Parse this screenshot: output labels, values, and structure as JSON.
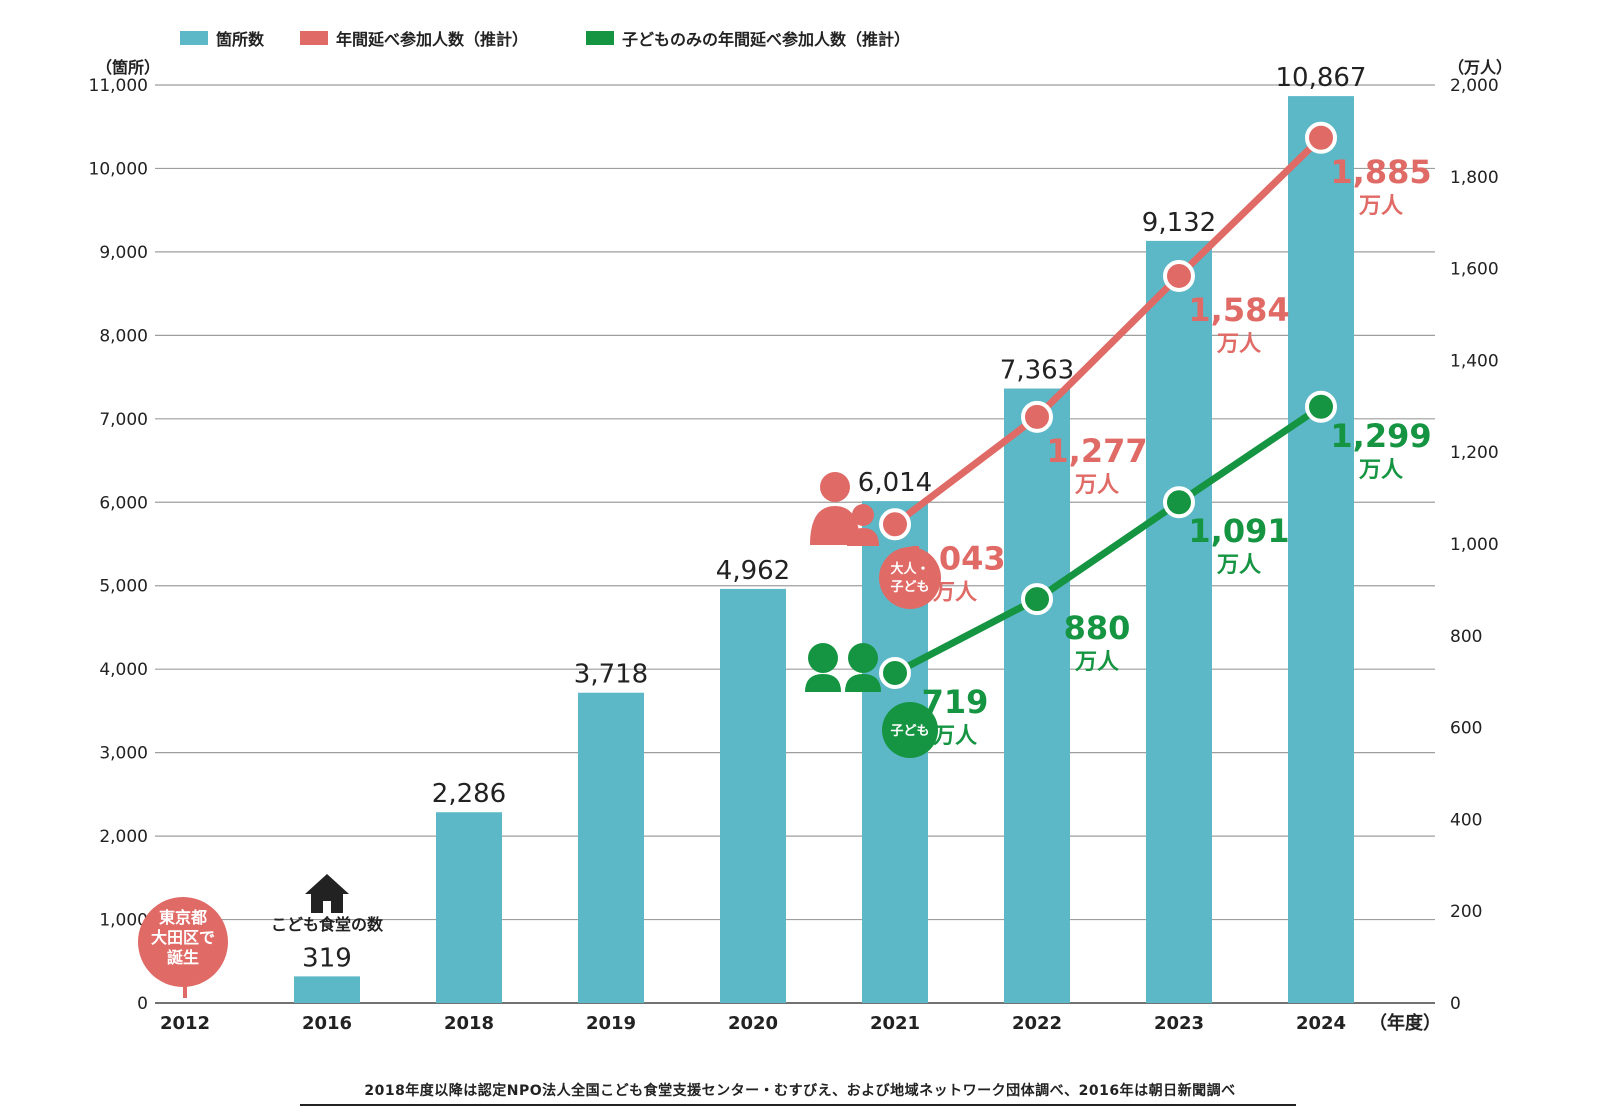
{
  "legend": {
    "left_unit": "（箇所）",
    "right_unit": "（万人）",
    "bars": "箇所数",
    "adults": "年間延べ参加人数（推計）",
    "children": "子どものみの年間延べ参加人数（推計）"
  },
  "colors": {
    "bar": "#5cb8c7",
    "adults": "#e06a66",
    "children": "#159441",
    "grid": "#9e9e9e",
    "text": "#222222"
  },
  "annotations": {
    "birth_badge": [
      "東京都",
      "大田区で",
      "誕生"
    ],
    "house_label": "こども食堂の数",
    "adults_badge": [
      "大人・",
      "子ども"
    ],
    "children_badge": "子ども",
    "value_unit": "万人"
  },
  "chart_data": {
    "type": "bar",
    "categories": [
      "2012",
      "2016",
      "2018",
      "2019",
      "2020",
      "2021",
      "2022",
      "2023",
      "2024"
    ],
    "xlabel": "（年度）",
    "y_left": {
      "label": "（箇所）",
      "ylim": [
        0,
        11000
      ],
      "ticks": [
        "0",
        "1,000",
        "2,000",
        "3,000",
        "4,000",
        "5,000",
        "6,000",
        "7,000",
        "8,000",
        "9,000",
        "10,000",
        "11,000"
      ]
    },
    "y_right": {
      "label": "（万人）",
      "ylim": [
        0,
        2000
      ],
      "ticks": [
        "0",
        "200",
        "400",
        "600",
        "800",
        "1,000",
        "1,200",
        "1,400",
        "1,600",
        "1,800",
        "2,000"
      ]
    },
    "grid": true,
    "legend_position": "top",
    "bar_series": {
      "name": "箇所数",
      "values": [
        1,
        319,
        2286,
        3718,
        4962,
        6014,
        7363,
        9132,
        10867
      ],
      "labels": [
        "",
        "319",
        "2,286",
        "3,718",
        "4,962",
        "6,014",
        "7,363",
        "9,132",
        "10,867"
      ]
    },
    "line_series": [
      {
        "name": "年間延べ参加人数（推計）",
        "axis": "right",
        "categories": [
          "2021",
          "2022",
          "2023",
          "2024"
        ],
        "values": [
          1043,
          1277,
          1584,
          1885
        ],
        "labels": [
          "1,043",
          "1,277",
          "1,584",
          "1,885"
        ]
      },
      {
        "name": "子どものみの年間延べ参加人数（推計）",
        "axis": "right",
        "categories": [
          "2021",
          "2022",
          "2023",
          "2024"
        ],
        "values": [
          719,
          880,
          1091,
          1299
        ],
        "labels": [
          "719",
          "880",
          "1,091",
          "1,299"
        ]
      }
    ]
  },
  "source": "2018年度以降は認定NPO法人全国こども食堂支援センター・むすびえ、および地域ネットワーク団体調べ、2016年は朝日新聞調べ"
}
